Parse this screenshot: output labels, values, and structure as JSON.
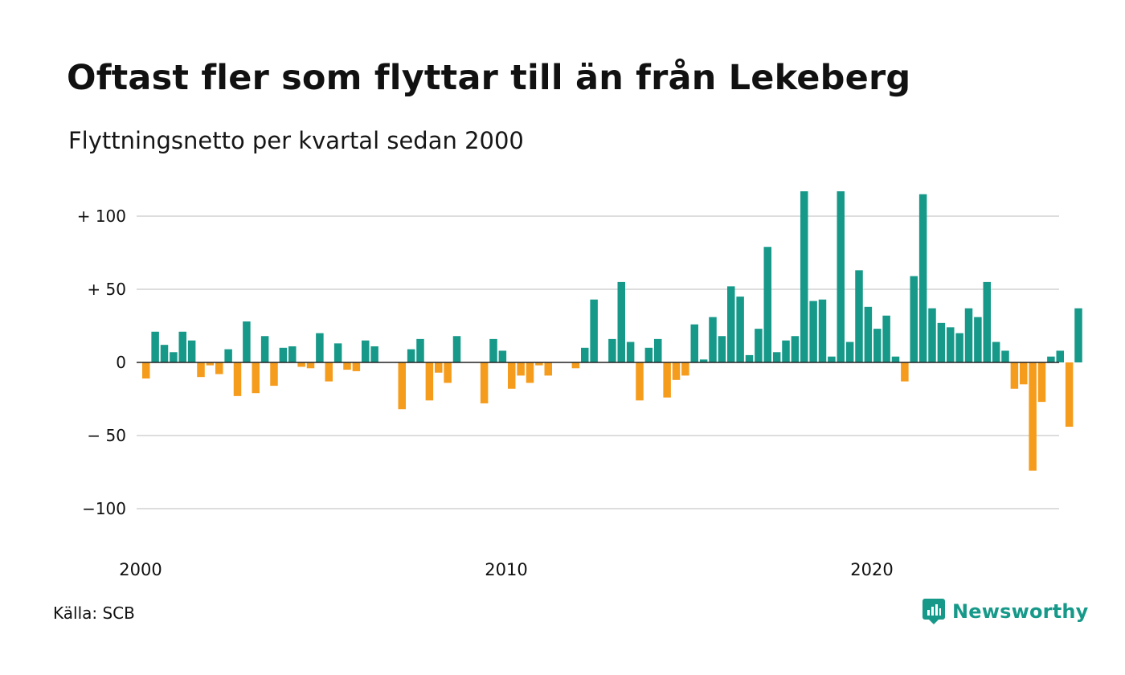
{
  "title": "Oftast fler som flyttar till än från Lekeberg",
  "subtitle": "Flyttningsnetto per kvartal sedan 2000",
  "source": "Källa: SCB",
  "brand": "Newsworthy",
  "colors": {
    "positive": "#17998a",
    "negative": "#f59c1c",
    "grid": "#dddddd",
    "zero": "#222222"
  },
  "chart_data": {
    "type": "bar",
    "x_start_year": 2000,
    "periods_per_year": 4,
    "x_tick_labels": [
      "2000",
      "2010",
      "2020"
    ],
    "y_ticks": [
      100,
      50,
      0,
      -50,
      -100
    ],
    "y_tick_labels": [
      "+ 100",
      "+  50",
      "0",
      "− 50",
      "−100"
    ],
    "ylim": [
      -112,
      118
    ],
    "grid": true,
    "values": [
      -11,
      21,
      12,
      7,
      21,
      15,
      -10,
      -2,
      -8,
      9,
      -23,
      28,
      -21,
      18,
      -16,
      10,
      11,
      -3,
      -4,
      20,
      -13,
      13,
      -5,
      -6,
      15,
      11,
      0,
      0,
      -32,
      9,
      16,
      -26,
      -7,
      -14,
      18,
      0,
      0,
      -28,
      16,
      8,
      -18,
      -9,
      -14,
      -2,
      -9,
      0,
      0,
      -4,
      10,
      43,
      0,
      16,
      55,
      14,
      -26,
      10,
      16,
      -24,
      -12,
      -9,
      26,
      2,
      31,
      18,
      52,
      45,
      5,
      23,
      79,
      7,
      15,
      18,
      117,
      42,
      43,
      4,
      117,
      14,
      63,
      38,
      23,
      32,
      4,
      -13,
      59,
      115,
      37,
      27,
      24,
      20,
      37,
      31,
      55,
      14,
      8,
      -18,
      -15,
      -74,
      -27,
      4,
      8,
      -44,
      37
    ]
  }
}
